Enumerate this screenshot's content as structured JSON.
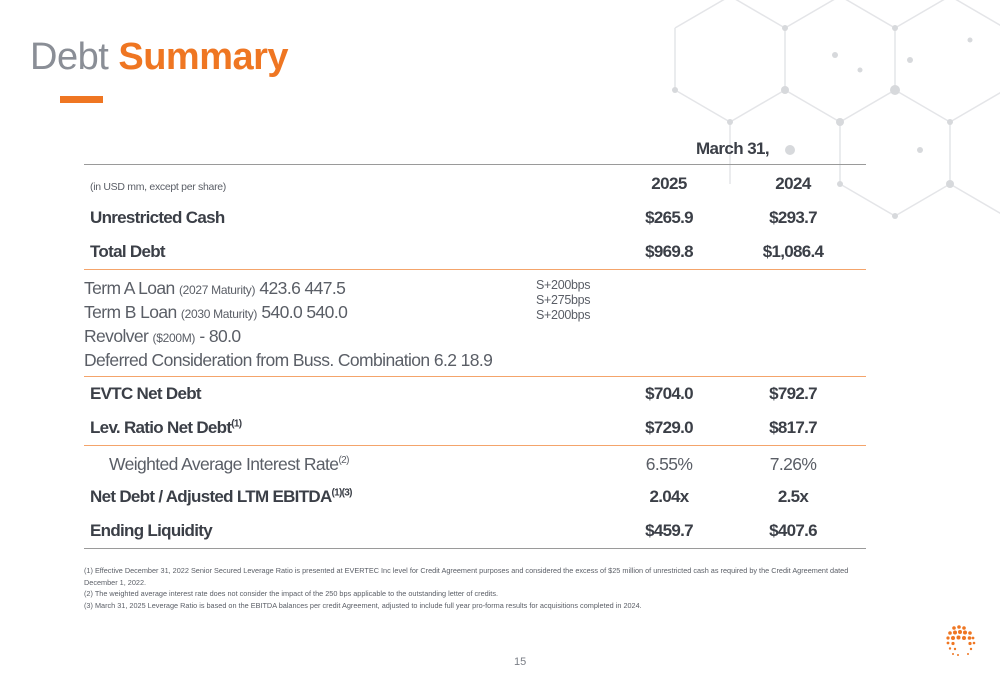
{
  "title": {
    "part1": "Debt",
    "part2": "Summary"
  },
  "colors": {
    "accent": "#ef7622",
    "accent_line": "#f4a46b",
    "text": "#3b3f47",
    "muted": "#8a8e96"
  },
  "table": {
    "period_header": "March 31,",
    "units_note": "(in USD mm, except per share)",
    "years": [
      "2025",
      "2024"
    ],
    "unrestricted_cash": {
      "label": "Unrestricted Cash",
      "v2025": "$265.9",
      "v2024": "$293.7"
    },
    "total_debt": {
      "label": "Total Debt",
      "v2025": "$969.8",
      "v2024": "$1,086.4"
    },
    "details": [
      {
        "label": "Term A Loan",
        "note": "(2027 Maturity)",
        "v2025": "423.6",
        "v2024": "447.5"
      },
      {
        "label": "Term B Loan",
        "note": "(2030 Maturity)",
        "v2025": "540.0",
        "v2024": "540.0"
      },
      {
        "label": "Revolver",
        "note": "($200M)",
        "v2025": "-",
        "v2024": "80.0"
      },
      {
        "label": "Deferred Consideration from Buss. Combination",
        "note": "",
        "v2025": "6.2",
        "v2024": "18.9"
      }
    ],
    "rates": [
      "S+200bps",
      "S+275bps",
      "S+200bps"
    ],
    "net_debt": {
      "label": "EVTC Net Debt",
      "v2025": "$704.0",
      "v2024": "$792.7"
    },
    "lev_ratio": {
      "label": "Lev. Ratio Net Debt",
      "sup": "(1)",
      "v2025": "$729.0",
      "v2024": "$817.7"
    },
    "wair": {
      "label": "Weighted Average Interest Rate",
      "sup": "(2)",
      "v2025": "6.55%",
      "v2024": "7.26%"
    },
    "net_debt_ebitda": {
      "label": "Net Debt / Adjusted LTM EBITDA",
      "sup": "(1)(3)",
      "v2025": "2.04x",
      "v2024": "2.5x"
    },
    "ending_liquidity": {
      "label": "Ending Liquidity",
      "v2025": "$459.7",
      "v2024": "$407.6"
    }
  },
  "footnotes": [
    "(1) Effective December 31, 2022 Senior Secured Leverage Ratio is presented at EVERTEC Inc level for Credit Agreement purposes and considered the excess of $25 million of unrestricted cash as required by the Credit Agreement dated December 1, 2022.",
    "(2) The weighted average interest rate does not consider the impact of the 250 bps applicable to the outstanding letter of credits.",
    "(3) March 31, 2025 Leverage Ratio is based on the EBITDA balances per credit Agreement, adjusted to include full year pro-forma results for acquisitions completed in 2024."
  ],
  "page_number": "15",
  "icons": {
    "background": "hexagon-network-graphic",
    "logo": "dot-sphere-logo-icon"
  }
}
